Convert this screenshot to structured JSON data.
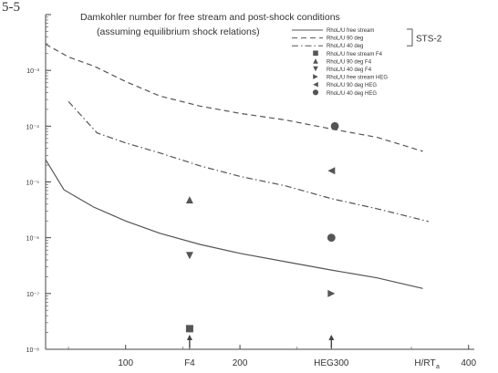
{
  "figure_label": "5-5",
  "chart_data": {
    "type": "line",
    "title": "Damkohler number for free stream and post-shock conditions",
    "subtitle": "(assuming equilibrium shock relations)",
    "xlabel": "H/RT",
    "ylabel": "",
    "xlim": [
      30,
      405
    ],
    "ylog": true,
    "ylim_exponent": [
      -8,
      -2
    ],
    "x_ticks": [
      {
        "value": 100,
        "label": "100"
      },
      {
        "value": 156,
        "label": "F4"
      },
      {
        "value": 200,
        "label": "200"
      },
      {
        "value": 280,
        "label": "HEG300"
      },
      {
        "value": 400,
        "label": "400"
      }
    ],
    "y_ticks": [
      {
        "exp": -2,
        "label": "10⁻²"
      },
      {
        "exp": -3,
        "label": "10⁻³"
      },
      {
        "exp": -4,
        "label": "10⁻⁴"
      },
      {
        "exp": -5,
        "label": "10⁻⁵"
      },
      {
        "exp": -6,
        "label": "10⁻⁶"
      },
      {
        "exp": -7,
        "label": "10⁻⁷"
      },
      {
        "exp": -8,
        "label": "10⁻⁸"
      }
    ],
    "arrows_x": [
      156,
      280
    ],
    "series": [
      {
        "name": "RhoL/U free stream",
        "style": "solid",
        "x": [
          30,
          46,
          72,
          100,
          130,
          165,
          200,
          240,
          280,
          320,
          360
        ],
        "y_exp": [
          -4.6,
          -5.14,
          -5.45,
          -5.7,
          -5.92,
          -6.12,
          -6.28,
          -6.43,
          -6.58,
          -6.72,
          -6.91
        ]
      },
      {
        "name": "RhoL/U 90 deg",
        "style": "dashed",
        "x": [
          30,
          50,
          73,
          100,
          130,
          165,
          200,
          240,
          280,
          320,
          360
        ],
        "y_exp": [
          -2.53,
          -2.76,
          -2.93,
          -3.2,
          -3.46,
          -3.64,
          -3.77,
          -3.89,
          -4.05,
          -4.2,
          -4.45
        ]
      },
      {
        "name": "RhoL/U 40 deg",
        "style": "dashdot",
        "x": [
          50,
          75,
          100,
          130,
          165,
          200,
          240,
          280,
          320,
          365
        ],
        "y_exp": [
          -3.56,
          -4.12,
          -4.3,
          -4.48,
          -4.71,
          -4.9,
          -5.07,
          -5.3,
          -5.48,
          -5.71
        ]
      }
    ],
    "points": [
      {
        "name": "RhoL/U free stream F4",
        "marker": "square",
        "x": 156,
        "y_exp": -7.63
      },
      {
        "name": "RhoL/U 90 deg F4",
        "marker": "triangle-up",
        "x": 156,
        "y_exp": -5.32
      },
      {
        "name": "RhoL/U 40 deg F4",
        "marker": "triangle-down",
        "x": 156,
        "y_exp": -6.32
      },
      {
        "name": "RhoL/U free stream HEG",
        "marker": "triangle-right",
        "x": 280,
        "y_exp": -7.0
      },
      {
        "name": "RhoL/U 90 deg HEG",
        "marker": "triangle-left",
        "x": 280,
        "y_exp": -4.8
      },
      {
        "name": "RhoL/U 40 deg HEG",
        "marker": "circle",
        "x": 280,
        "y_exp": -6.0
      },
      {
        "name": "",
        "marker": "circle",
        "x": 283,
        "y_exp": -4.0
      }
    ],
    "legend": {
      "placement": "top-right",
      "group_label": "STS-2",
      "entries": [
        {
          "label": "RhoL/U  free stream",
          "style": "solid"
        },
        {
          "label": "RhoL/U  90 deg",
          "style": "dashed"
        },
        {
          "label": "RhoL/U  40 deg",
          "style": "dashdot"
        },
        {
          "label": "RhoL/U  free stream F4",
          "marker": "square"
        },
        {
          "label": "RhoL/U  90 deg F4",
          "marker": "triangle-up"
        },
        {
          "label": "RhoL/U  40 deg F4",
          "marker": "triangle-down"
        },
        {
          "label": "RhoL/U  free stream HEG",
          "marker": "triangle-right"
        },
        {
          "label": "RhoL/U  90 deg HEG",
          "marker": "triangle-left"
        },
        {
          "label": "RhoL/U  40 deg HEG",
          "marker": "circle"
        }
      ]
    }
  }
}
